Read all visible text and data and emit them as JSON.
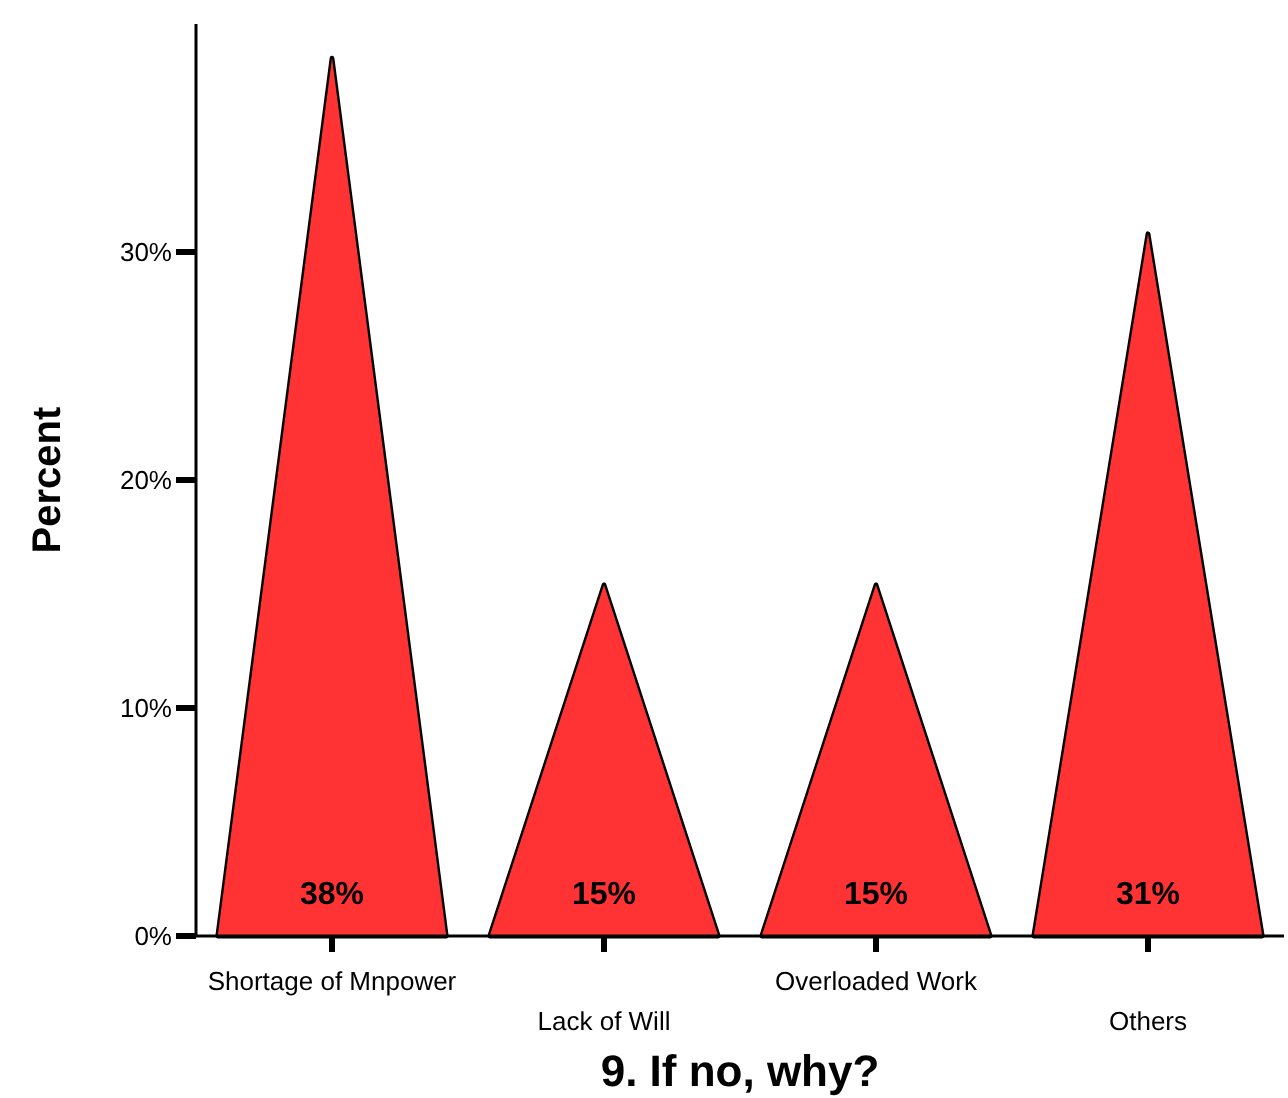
{
  "chart_data": {
    "type": "bar",
    "xlabel": "9. If no, why?",
    "ylabel": "Percent",
    "categories": [
      "Shortage of Mnpower",
      "Lack of Will",
      "Overloaded Work",
      "Others"
    ],
    "values": [
      38.5,
      15.4,
      15.4,
      30.8
    ],
    "value_labels": [
      "38%",
      "15%",
      "15%",
      "31%"
    ],
    "color": "#ff3333",
    "ylim": [
      0,
      40
    ],
    "yticks": [
      {
        "value": 0,
        "label": "0%"
      },
      {
        "value": 10,
        "label": "10%"
      },
      {
        "value": 20,
        "label": "20%"
      },
      {
        "value": 30,
        "label": "30%"
      }
    ],
    "grid": false
  }
}
